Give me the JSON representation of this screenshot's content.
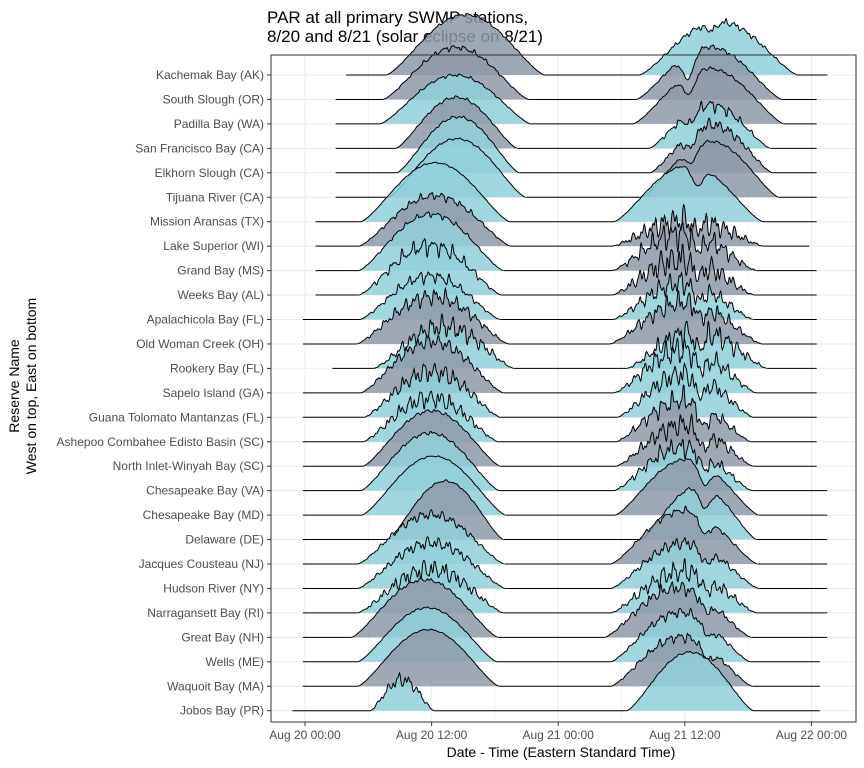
{
  "chart_data": {
    "type": "area",
    "subtype": "ridgeline",
    "title_lines": [
      "PAR at all primary SWMP stations,",
      "8/20 and 8/21 (solar eclipse on 8/21)"
    ],
    "xlabel": "Date - Time (Eastern Standard Time)",
    "ylabel_lines": [
      "Reserve Name",
      "West on top, East on bottom"
    ],
    "x_unit": "hours since Aug 20 00:00 EST",
    "xlim": [
      -2.2,
      50
    ],
    "x_ticks": [
      {
        "value": 0,
        "label": "Aug 20 00:00"
      },
      {
        "value": 12,
        "label": "Aug 20 12:00"
      },
      {
        "value": 24,
        "label": "Aug 21 00:00"
      },
      {
        "value": 36,
        "label": "Aug 21 12:00"
      },
      {
        "value": 48,
        "label": "Aug 22 00:00"
      }
    ],
    "grid": true,
    "colors": {
      "fill_a": "#8fd0d8",
      "fill_b": "#8e99a8",
      "outline": "#000000",
      "grid": "#ebebeb",
      "panel_border": "#333333"
    },
    "series": [
      {
        "name": "Kachemak Bay (AK)",
        "start": 3.9,
        "end": 49.5,
        "sr": 7.7,
        "ss": 22.7,
        "fill1": "b",
        "fill2": "a",
        "p1": 1.35,
        "p2": 1.25,
        "n1": 0.04,
        "n2": 0.1,
        "ecl": 0.15,
        "ecl_t": 38.5
      },
      {
        "name": "South Slough (OR)",
        "start": 2.9,
        "end": 48.5,
        "sr": 7.4,
        "ss": 21.2,
        "fill1": "b",
        "fill2": "b",
        "p1": 1.2,
        "p2": 1.2,
        "n1": 0.08,
        "n2": 0.07,
        "ecl": 0.55,
        "ecl_t": 36.3
      },
      {
        "name": "Padilla Bay (WA)",
        "start": 2.9,
        "end": 48.5,
        "sr": 7.1,
        "ss": 21.4,
        "fill1": "a",
        "fill2": "b",
        "p1": 1.1,
        "p2": 1.25,
        "n1": 0.05,
        "n2": 0.05,
        "ecl": 0.4,
        "ecl_t": 36.4
      },
      {
        "name": "San Francisco Bay (CA)",
        "start": 2.9,
        "end": 48.5,
        "sr": 8.6,
        "ss": 20.1,
        "fill1": "b",
        "fill2": "a",
        "p1": 1.15,
        "p2": 1.1,
        "n1": 0.05,
        "n2": 0.2,
        "ecl": 0.3,
        "ecl_t": 36.5
      },
      {
        "name": "Elkhorn Slough (CA)",
        "start": 2.9,
        "end": 48.5,
        "sr": 8.7,
        "ss": 20.3,
        "fill1": "a",
        "fill2": "b",
        "p1": 1.25,
        "p2": 1.2,
        "n1": 0.04,
        "n2": 0.18,
        "ecl": 0.35,
        "ecl_t": 36.5
      },
      {
        "name": "Tijuana River (CA)",
        "start": 2.9,
        "end": 48.5,
        "sr": 7.9,
        "ss": 20.9,
        "fill1": "a",
        "fill2": "b",
        "p1": 1.3,
        "p2": 1.25,
        "n1": 0.03,
        "n2": 0.04,
        "ecl": 0.3,
        "ecl_t": 36.6
      },
      {
        "name": "Mission Aransas (TX)",
        "start": 1.0,
        "end": 48.5,
        "sr": 5.3,
        "ss": 19.4,
        "fill1": "a",
        "fill2": "a",
        "p1": 1.3,
        "p2": 1.25,
        "n1": 0.02,
        "n2": 0.03,
        "ecl": 0.35,
        "ecl_t": 37.2
      },
      {
        "name": "Lake Superior (WI)",
        "start": 1.0,
        "end": 47.8,
        "sr": 5.1,
        "ss": 19.5,
        "fill1": "b",
        "fill2": "b",
        "p1": 1.2,
        "p2": 0.95,
        "n1": 0.12,
        "n2": 0.55,
        "ecl": 0.35,
        "ecl_t": 37.2
      },
      {
        "name": "Grand Bay (MS)",
        "start": 1.0,
        "end": 48.5,
        "sr": 5.1,
        "ss": 18.8,
        "fill1": "a",
        "fill2": "b",
        "p1": 1.3,
        "p2": 1.2,
        "n1": 0.08,
        "n2": 0.45,
        "ecl": 0.4,
        "ecl_t": 37.3
      },
      {
        "name": "Weeks Bay (AL)",
        "start": 1.0,
        "end": 48.5,
        "sr": 5.1,
        "ss": 18.6,
        "fill1": "a",
        "fill2": "b",
        "p1": 1.3,
        "p2": 1.2,
        "n1": 0.25,
        "n2": 0.5,
        "ecl": 0.4,
        "ecl_t": 37.3
      },
      {
        "name": "Apalachicola Bay (FL)",
        "start": -0.2,
        "end": 48.5,
        "sr": 5.2,
        "ss": 18.5,
        "fill1": "a",
        "fill2": "a",
        "p1": 1.1,
        "p2": 1.1,
        "n1": 0.2,
        "n2": 0.4,
        "ecl": 0.4,
        "ecl_t": 37.4
      },
      {
        "name": "Old Woman Creek (OH)",
        "start": -0.2,
        "end": 48.5,
        "sr": 4.9,
        "ss": 19.3,
        "fill1": "b",
        "fill2": "b",
        "p1": 1.25,
        "p2": 1.2,
        "n1": 0.25,
        "n2": 0.35,
        "ecl": 0.3,
        "ecl_t": 37.6
      },
      {
        "name": "Rookery Bay (FL)",
        "start": 2.6,
        "end": 48.5,
        "sr": 6.5,
        "ss": 19.8,
        "fill1": "a",
        "fill2": "a",
        "p1": 1.2,
        "p2": 1.2,
        "n1": 0.35,
        "n2": 0.45,
        "ecl": 0.45,
        "ecl_t": 37.4
      },
      {
        "name": "Sapelo Island (GA)",
        "start": -0.2,
        "end": 48.5,
        "sr": 5.3,
        "ss": 18.8,
        "fill1": "b",
        "fill2": "a",
        "p1": 1.3,
        "p2": 1.3,
        "n1": 0.2,
        "n2": 0.4,
        "ecl": 0.4,
        "ecl_t": 37.6
      },
      {
        "name": "Guana Tolomato Mantanzas (FL)",
        "start": -0.2,
        "end": 48.5,
        "sr": 5.6,
        "ss": 18.5,
        "fill1": "a",
        "fill2": "a",
        "p1": 1.25,
        "p2": 1.25,
        "n1": 0.3,
        "n2": 0.35,
        "ecl": 0.45,
        "ecl_t": 37.5
      },
      {
        "name": "Ashepoo Combahee Edisto Basin (SC)",
        "start": -0.2,
        "end": 48.5,
        "sr": 5.5,
        "ss": 18.3,
        "fill1": "a",
        "fill2": "b",
        "p1": 1.2,
        "p2": 1.2,
        "n1": 0.3,
        "n2": 0.35,
        "ecl": 0.55,
        "ecl_t": 37.8
      },
      {
        "name": "North Inlet-Winyah Bay (SC)",
        "start": -0.2,
        "end": 48.5,
        "sr": 5.5,
        "ss": 18.5,
        "fill1": "b",
        "fill2": "b",
        "p1": 1.25,
        "p2": 1.2,
        "n1": 0.05,
        "n2": 0.35,
        "ecl": 0.5,
        "ecl_t": 37.8
      },
      {
        "name": "Chesapeake Bay (VA)",
        "start": -0.2,
        "end": 49.5,
        "sr": 5.3,
        "ss": 18.4,
        "fill1": "a",
        "fill2": "a",
        "p1": 1.3,
        "p2": 1.2,
        "n1": 0.05,
        "n2": 0.3,
        "ecl": 0.4,
        "ecl_t": 37.9
      },
      {
        "name": "Chesapeake Bay (MD)",
        "start": -0.2,
        "end": 49.5,
        "sr": 5.4,
        "ss": 19.0,
        "fill1": "a",
        "fill2": "b",
        "p1": 1.3,
        "p2": 1.25,
        "n1": 0.02,
        "n2": 0.04,
        "ecl": 0.4,
        "ecl_t": 37.9
      },
      {
        "name": "Delaware (DE)",
        "start": -0.2,
        "end": 49.5,
        "sr": 7.8,
        "ss": 18.8,
        "fill1": "b",
        "fill2": "a",
        "p1": 1.3,
        "p2": 1.2,
        "n1": 0.03,
        "n2": 0.05,
        "ecl": 0.4,
        "ecl_t": 37.9
      },
      {
        "name": "Jacques Cousteau (NJ)",
        "start": -0.2,
        "end": 49.5,
        "sr": 5.0,
        "ss": 18.9,
        "fill1": "a",
        "fill2": "b",
        "p1": 1.2,
        "p2": 1.25,
        "n1": 0.15,
        "n2": 0.1,
        "ecl": 0.35,
        "ecl_t": 37.9
      },
      {
        "name": "Hudson River (NY)",
        "start": -0.2,
        "end": 49.5,
        "sr": 5.0,
        "ss": 19.0,
        "fill1": "a",
        "fill2": "a",
        "p1": 1.15,
        "p2": 1.15,
        "n1": 0.2,
        "n2": 0.2,
        "ecl": 0.35,
        "ecl_t": 38.0
      },
      {
        "name": "Narragansett Bay (RI)",
        "start": -0.2,
        "end": 49.5,
        "sr": 5.0,
        "ss": 18.8,
        "fill1": "a",
        "fill2": "a",
        "p1": 1.2,
        "p2": 1.2,
        "n1": 0.3,
        "n2": 0.35,
        "ecl": 0.35,
        "ecl_t": 38.1
      },
      {
        "name": "Great Bay (NH)",
        "start": -0.2,
        "end": 49.5,
        "sr": 4.4,
        "ss": 18.3,
        "fill1": "b",
        "fill2": "b",
        "p1": 1.3,
        "p2": 1.25,
        "n1": 0.05,
        "n2": 0.2,
        "ecl": 0.3,
        "ecl_t": 38.1
      },
      {
        "name": "Wells (ME)",
        "start": -0.2,
        "end": 48.8,
        "sr": 5.0,
        "ss": 18.2,
        "fill1": "a",
        "fill2": "a",
        "p1": 1.2,
        "p2": 1.2,
        "n1": 0.03,
        "n2": 0.15,
        "ecl": 0.3,
        "ecl_t": 38.2
      },
      {
        "name": "Waquoit Bay (MA)",
        "start": -0.2,
        "end": 48.8,
        "sr": 5.0,
        "ss": 18.4,
        "fill1": "b",
        "fill2": "b",
        "p1": 1.25,
        "p2": 1.2,
        "n1": 0.02,
        "n2": 0.15,
        "ecl": 0.3,
        "ecl_t": 38.2
      },
      {
        "name": "Jobos Bay (PR)",
        "start": -1.2,
        "end": 48.8,
        "sr": 6.2,
        "ss": 12.2,
        "fill1": "a",
        "fill2": "a",
        "p1": 0.85,
        "p2": 1.3,
        "n1": 0.3,
        "n2": 0.03,
        "ecl": 0.0,
        "ecl_t": 37.5,
        "end1": 12.2,
        "sr2": 30.5,
        "ss2": 42.5
      }
    ]
  }
}
